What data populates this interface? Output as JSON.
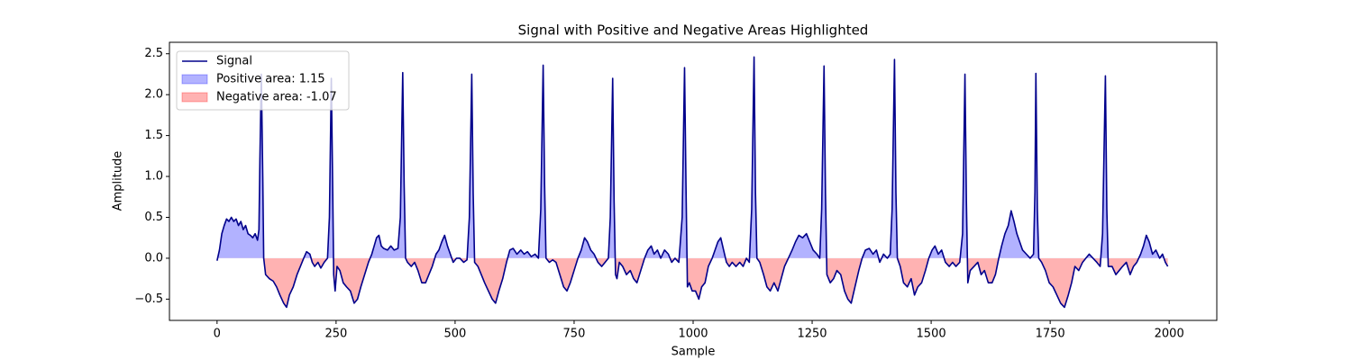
{
  "chart_data": {
    "type": "line",
    "title": "Signal with Positive and Negative Areas Highlighted",
    "xlabel": "Sample",
    "ylabel": "Amplitude",
    "xlim": [
      -100,
      2100
    ],
    "ylim": [
      -0.76,
      2.64
    ],
    "xticks": [
      0,
      250,
      500,
      750,
      1000,
      1250,
      1500,
      1750,
      2000
    ],
    "yticks": [
      {
        "value": -0.5,
        "label": "−0.5"
      },
      {
        "value": 0,
        "label": "0.0"
      },
      0.5,
      {
        "value": 1,
        "label": "1.0"
      },
      1.5,
      {
        "value": 2,
        "label": "2.0"
      },
      2.5
    ],
    "legend": "upper left",
    "x": [
      0,
      5,
      10,
      15,
      20,
      25,
      30,
      35,
      40,
      45,
      50,
      55,
      60,
      65,
      70,
      75,
      80,
      85,
      88,
      90,
      93,
      96,
      98,
      102,
      110,
      118,
      125,
      132,
      140,
      146,
      152,
      160,
      168,
      175,
      182,
      188,
      195,
      200,
      205,
      212,
      218,
      225,
      232,
      236,
      240,
      243,
      245,
      248,
      252,
      258,
      265,
      272,
      280,
      288,
      295,
      302,
      310,
      318,
      325,
      330,
      335,
      340,
      345,
      350,
      358,
      365,
      372,
      380,
      385,
      390,
      393,
      396,
      400,
      408,
      415,
      422,
      430,
      438,
      445,
      452,
      460,
      466,
      472,
      478,
      484,
      490,
      496,
      503,
      510,
      518,
      525,
      530,
      535,
      538,
      541,
      548,
      555,
      562,
      570,
      578,
      585,
      592,
      600,
      608,
      615,
      622,
      630,
      638,
      645,
      652,
      660,
      668,
      675,
      680,
      685,
      688,
      691,
      698,
      705,
      712,
      720,
      728,
      735,
      742,
      750,
      758,
      765,
      772,
      778,
      785,
      792,
      800,
      808,
      815,
      822,
      826,
      831,
      834,
      837,
      840,
      845,
      852,
      860,
      868,
      875,
      882,
      890,
      898,
      905,
      912,
      918,
      925,
      932,
      940,
      948,
      955,
      962,
      970,
      977,
      982,
      985,
      988,
      992,
      998,
      1005,
      1012,
      1018,
      1025,
      1032,
      1040,
      1046,
      1052,
      1058,
      1064,
      1070,
      1076,
      1082,
      1090,
      1098,
      1105,
      1112,
      1118,
      1123,
      1128,
      1131,
      1134,
      1140,
      1148,
      1155,
      1162,
      1170,
      1178,
      1185,
      1192,
      1200,
      1208,
      1215,
      1222,
      1230,
      1238,
      1245,
      1252,
      1260,
      1266,
      1270,
      1275,
      1278,
      1281,
      1288,
      1295,
      1302,
      1310,
      1318,
      1325,
      1332,
      1340,
      1348,
      1355,
      1362,
      1370,
      1378,
      1385,
      1392,
      1400,
      1408,
      1414,
      1418,
      1423,
      1426,
      1429,
      1435,
      1442,
      1450,
      1458,
      1465,
      1472,
      1480,
      1488,
      1495,
      1502,
      1508,
      1515,
      1522,
      1530,
      1538,
      1545,
      1552,
      1560,
      1566,
      1571,
      1574,
      1577,
      1582,
      1590,
      1598,
      1605,
      1612,
      1620,
      1628,
      1635,
      1642,
      1648,
      1655,
      1662,
      1668,
      1674,
      1680,
      1686,
      1692,
      1700,
      1708,
      1715,
      1718,
      1720,
      1723,
      1726,
      1732,
      1740,
      1748,
      1756,
      1764,
      1772,
      1780,
      1788,
      1795,
      1802,
      1810,
      1818,
      1825,
      1832,
      1840,
      1848,
      1855,
      1860,
      1866,
      1869,
      1872,
      1880,
      1888,
      1895,
      1902,
      1910,
      1918,
      1925,
      1932,
      1940,
      1946,
      1952,
      1958,
      1965,
      1972,
      1980,
      1986,
      1992,
      1997
    ],
    "series": [
      {
        "name": "Signal",
        "color": "#00008b",
        "values": [
          -0.03,
          0.1,
          0.3,
          0.4,
          0.48,
          0.45,
          0.5,
          0.45,
          0.48,
          0.4,
          0.45,
          0.35,
          0.4,
          0.3,
          0.28,
          0.25,
          0.3,
          0.22,
          0.35,
          1.2,
          2.25,
          1.0,
          0.0,
          -0.2,
          -0.25,
          -0.28,
          -0.35,
          -0.45,
          -0.55,
          -0.6,
          -0.45,
          -0.35,
          -0.2,
          -0.1,
          0.0,
          0.08,
          0.05,
          -0.05,
          -0.1,
          -0.05,
          -0.12,
          -0.05,
          0.0,
          0.5,
          2.2,
          0.8,
          -0.2,
          -0.4,
          -0.1,
          -0.15,
          -0.3,
          -0.35,
          -0.4,
          -0.55,
          -0.5,
          -0.35,
          -0.2,
          -0.05,
          0.05,
          0.15,
          0.25,
          0.28,
          0.15,
          0.12,
          0.1,
          0.15,
          0.1,
          0.12,
          0.5,
          2.27,
          0.9,
          0.0,
          -0.05,
          -0.1,
          -0.05,
          -0.15,
          -0.3,
          -0.3,
          -0.2,
          -0.1,
          0.05,
          0.1,
          0.2,
          0.28,
          0.15,
          0.05,
          -0.05,
          0.0,
          0.0,
          -0.05,
          -0.02,
          0.5,
          2.25,
          0.8,
          -0.05,
          -0.1,
          -0.2,
          -0.3,
          -0.4,
          -0.5,
          -0.55,
          -0.4,
          -0.25,
          -0.05,
          0.1,
          0.12,
          0.05,
          0.1,
          0.05,
          0.08,
          0.02,
          0.05,
          0.0,
          0.6,
          2.36,
          0.9,
          0.0,
          -0.05,
          -0.02,
          -0.05,
          -0.2,
          -0.35,
          -0.4,
          -0.3,
          -0.15,
          0.0,
          0.1,
          0.25,
          0.2,
          0.1,
          0.05,
          -0.05,
          -0.1,
          -0.05,
          0.0,
          0.5,
          2.2,
          0.7,
          -0.2,
          -0.25,
          -0.05,
          -0.1,
          -0.2,
          -0.15,
          -0.25,
          -0.3,
          -0.15,
          0.0,
          0.1,
          0.15,
          0.05,
          0.1,
          0.0,
          0.1,
          0.05,
          -0.05,
          0.0,
          -0.05,
          0.5,
          2.33,
          0.9,
          -0.35,
          -0.3,
          -0.4,
          -0.4,
          -0.5,
          -0.35,
          -0.3,
          -0.1,
          0.0,
          0.1,
          0.2,
          0.25,
          0.1,
          -0.05,
          -0.1,
          -0.05,
          -0.1,
          -0.05,
          -0.1,
          0.0,
          -0.05,
          0.6,
          2.46,
          0.8,
          0.0,
          -0.05,
          -0.2,
          -0.35,
          -0.4,
          -0.3,
          -0.4,
          -0.25,
          -0.1,
          0.0,
          0.1,
          0.2,
          0.28,
          0.25,
          0.3,
          0.2,
          0.1,
          0.05,
          0.0,
          0.6,
          2.35,
          0.8,
          -0.2,
          -0.3,
          -0.25,
          -0.15,
          -0.2,
          -0.4,
          -0.5,
          -0.55,
          -0.35,
          -0.15,
          0.0,
          0.1,
          0.12,
          0.05,
          0.1,
          -0.05,
          0.05,
          0.0,
          0.05,
          0.6,
          2.43,
          0.8,
          0.0,
          -0.1,
          -0.3,
          -0.35,
          -0.25,
          -0.45,
          -0.35,
          -0.3,
          -0.15,
          0.0,
          0.1,
          0.15,
          0.05,
          0.1,
          -0.05,
          -0.1,
          -0.05,
          -0.1,
          -0.05,
          0.3,
          2.25,
          0.7,
          -0.3,
          -0.15,
          -0.1,
          -0.05,
          -0.2,
          -0.15,
          -0.3,
          -0.3,
          -0.2,
          0.0,
          0.15,
          0.3,
          0.4,
          0.58,
          0.45,
          0.3,
          0.2,
          0.1,
          0.05,
          0.0,
          0.05,
          0.8,
          2.26,
          0.6,
          0.0,
          -0.05,
          -0.15,
          -0.3,
          -0.35,
          -0.45,
          -0.55,
          -0.6,
          -0.45,
          -0.3,
          -0.1,
          -0.15,
          -0.05,
          0.0,
          0.05,
          0.0,
          -0.05,
          -0.1,
          0.3,
          2.23,
          0.6,
          -0.1,
          -0.1,
          -0.2,
          -0.15,
          -0.1,
          -0.05,
          -0.2,
          -0.1,
          -0.05,
          0.05,
          0.15,
          0.28,
          0.2,
          0.05,
          0.1,
          0.0,
          0.05,
          -0.05,
          -0.1
        ]
      }
    ],
    "positive_fill": {
      "name": "Positive area: 1.15",
      "color": "#0000ff"
    },
    "negative_fill": {
      "name": "Negative area: -1.07",
      "color": "#ff0000"
    }
  }
}
